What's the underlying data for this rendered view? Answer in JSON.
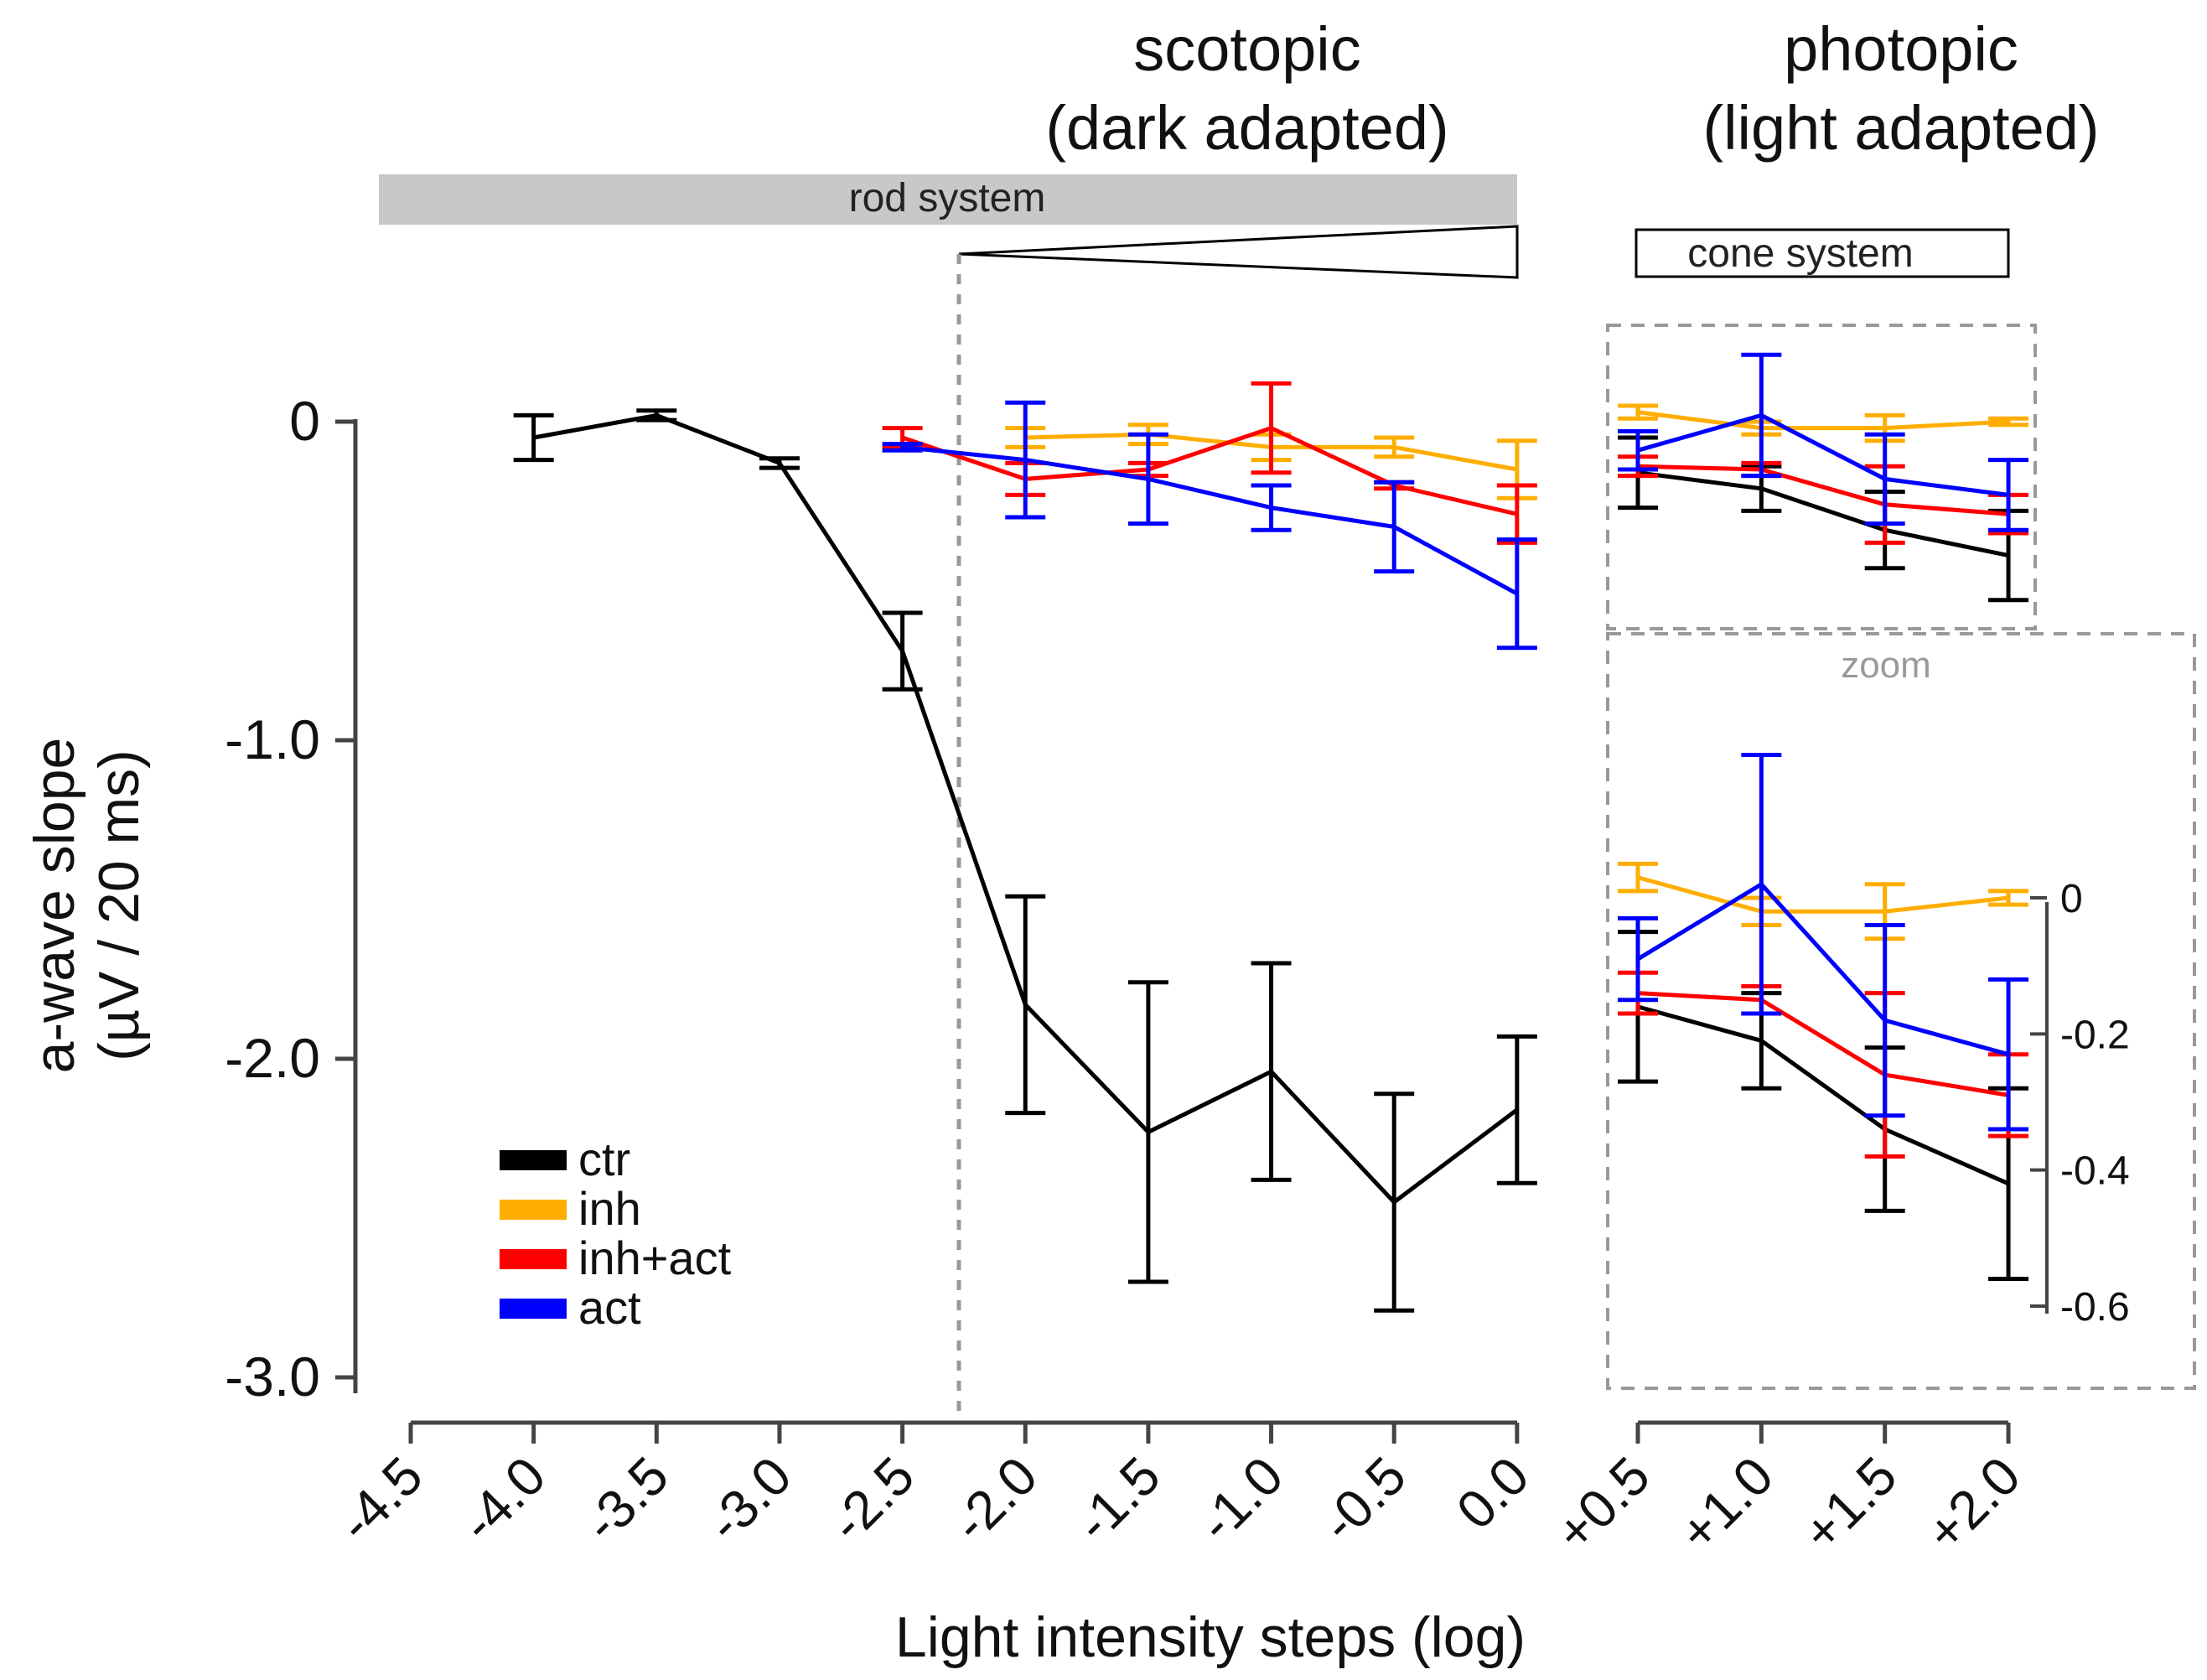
{
  "chart_data": {
    "type": "line",
    "ylabel_line1": "a-wave slope",
    "ylabel_line2": "(µV / 20 ms)",
    "xlabel": "Light intensity steps (log)",
    "scotopic_title": [
      "scotopic",
      "(dark adapted)"
    ],
    "photopic_title": [
      "photopic",
      "(light adapted)"
    ],
    "rod_band_label": "rod system",
    "cone_band_label": "cone system",
    "zoom_label": "zoom",
    "ylim": [
      -3.0,
      0.0
    ],
    "y_ticks": [
      {
        "value": 0.0,
        "label": "0"
      },
      {
        "value": -1.0,
        "label": "-1.0"
      },
      {
        "value": -2.0,
        "label": "-2.0"
      },
      {
        "value": -3.0,
        "label": "-3.0"
      }
    ],
    "x_ticks_scotopic": [
      {
        "value": -4.5,
        "label": "-4.5"
      },
      {
        "value": -4.0,
        "label": "-4.0"
      },
      {
        "value": -3.5,
        "label": "-3.5"
      },
      {
        "value": -3.0,
        "label": "-3.0"
      },
      {
        "value": -2.5,
        "label": "-2.5"
      },
      {
        "value": -2.0,
        "label": "-2.0"
      },
      {
        "value": -1.5,
        "label": "-1.5"
      },
      {
        "value": -1.0,
        "label": "-1.0"
      },
      {
        "value": -0.5,
        "label": "-0.5"
      },
      {
        "value": 0.0,
        "label": "0.0"
      }
    ],
    "x_ticks_photopic": [
      {
        "value": 0.5,
        "label": "+0.5"
      },
      {
        "value": 1.0,
        "label": "+1.0"
      },
      {
        "value": 1.5,
        "label": "+1.5"
      },
      {
        "value": 2.0,
        "label": "+2.0"
      }
    ],
    "zoom_ylim": [
      -0.6,
      0.0
    ],
    "zoom_y_ticks": [
      {
        "value": 0.0,
        "label": "0"
      },
      {
        "value": -0.2,
        "label": "-0.2"
      },
      {
        "value": -0.4,
        "label": "-0.4"
      },
      {
        "value": -0.6,
        "label": "-0.6"
      }
    ],
    "series": [
      {
        "name": "ctr",
        "color": "#000000",
        "scotopic": {
          "x": [
            -4.0,
            -3.5,
            -3.0,
            -2.5,
            -2.0,
            -1.5,
            -1.0,
            -0.5,
            0.0
          ],
          "y": [
            -0.05,
            0.02,
            -0.13,
            -0.72,
            -1.83,
            -2.23,
            -2.04,
            -2.45,
            -2.16
          ],
          "err": [
            0.07,
            0.015,
            0.015,
            0.12,
            0.34,
            0.47,
            0.34,
            0.34,
            0.23
          ]
        },
        "photopic": {
          "x": [
            0.5,
            1.0,
            1.5,
            2.0
          ],
          "y": [
            -0.16,
            -0.21,
            -0.34,
            -0.42
          ],
          "err": [
            0.11,
            0.07,
            0.12,
            0.14
          ]
        }
      },
      {
        "name": "inh",
        "color": "#FFAE00",
        "scotopic": {
          "x": [
            -2.0,
            -1.5,
            -1.0,
            -0.5,
            0.0
          ],
          "y": [
            -0.05,
            -0.04,
            -0.08,
            -0.08,
            -0.15
          ],
          "err": [
            0.03,
            0.03,
            0.04,
            0.03,
            0.09
          ]
        },
        "photopic": {
          "x": [
            0.5,
            1.0,
            1.5,
            2.0
          ],
          "y": [
            0.03,
            -0.02,
            -0.02,
            0.0
          ],
          "err": [
            0.02,
            0.02,
            0.04,
            0.01
          ]
        }
      },
      {
        "name": "inh+act",
        "color": "#FF0000",
        "scotopic": {
          "x": [
            -2.5,
            -2.0,
            -1.5,
            -1.0,
            -0.5,
            0.0
          ],
          "y": [
            -0.05,
            -0.18,
            -0.15,
            -0.02,
            -0.2,
            -0.29
          ],
          "err": [
            0.03,
            0.05,
            0.02,
            0.14,
            0.01,
            0.09
          ]
        },
        "photopic": {
          "x": [
            0.5,
            1.0,
            1.5,
            2.0
          ],
          "y": [
            -0.14,
            -0.15,
            -0.26,
            -0.29
          ],
          "err": [
            0.03,
            0.02,
            0.12,
            0.06
          ]
        }
      },
      {
        "name": "act",
        "color": "#0000FF",
        "scotopic": {
          "x": [
            -2.5,
            -2.0,
            -1.5,
            -1.0,
            -0.5,
            0.0
          ],
          "y": [
            -0.08,
            -0.12,
            -0.18,
            -0.27,
            -0.33,
            -0.54
          ],
          "err": [
            0.01,
            0.18,
            0.14,
            0.07,
            0.14,
            0.17
          ]
        },
        "photopic": {
          "x": [
            0.5,
            1.0,
            1.5,
            2.0
          ],
          "y": [
            -0.09,
            0.02,
            -0.18,
            -0.23
          ],
          "err": [
            0.06,
            0.19,
            0.14,
            0.11
          ]
        }
      }
    ]
  }
}
